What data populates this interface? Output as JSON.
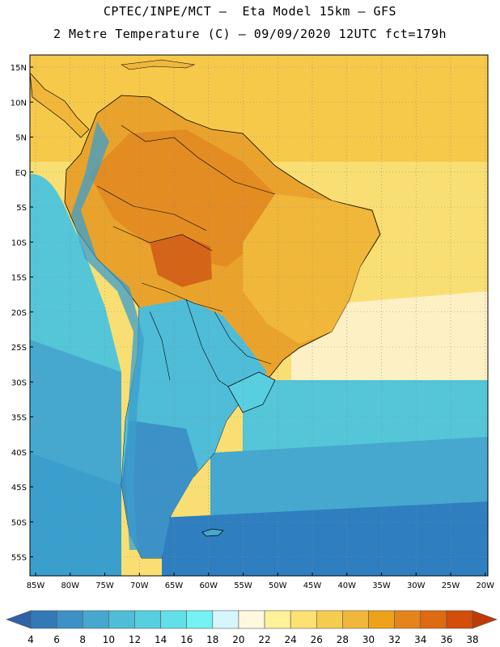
{
  "header": {
    "title_line1": "CPTEC/INPE/MCT –  Eta Model 15km – GFS",
    "title_line2": "2 Metre Temperature (C) – 09/09/2020 12UTC fct=179h"
  },
  "map": {
    "lat_labels": [
      "15N",
      "10N",
      "5N",
      "EQ",
      "5S",
      "10S",
      "15S",
      "20S",
      "25S",
      "30S",
      "35S",
      "40S",
      "45S",
      "50S",
      "55S"
    ],
    "lon_labels": [
      "85W",
      "80W",
      "75W",
      "70W",
      "65W",
      "60W",
      "55W",
      "50W",
      "45W",
      "40W",
      "35W",
      "30W",
      "25W",
      "20W"
    ],
    "ocean_colors": {
      "warm_tropical": "#f6c94b",
      "mid_tropical": "#f9df73",
      "pale_subtropic": "#fdf0c4",
      "cool_south": "#54c6d8",
      "cold_south": "#3a9fcd",
      "coldest": "#2f7fc0"
    }
  },
  "colorbar": {
    "ticks": [
      "4",
      "6",
      "8",
      "10",
      "12",
      "14",
      "16",
      "18",
      "20",
      "22",
      "24",
      "26",
      "28",
      "30",
      "32",
      "34",
      "36",
      "38"
    ],
    "colors": [
      "#2d62a8",
      "#3379b8",
      "#3c91c6",
      "#46a8cf",
      "#4fbcd8",
      "#58cfe0",
      "#62dfe8",
      "#74f2f4",
      "#d6f6fb",
      "#fff8e1",
      "#fff29a",
      "#fbe272",
      "#f6cc4e",
      "#f1b73a",
      "#eda21a",
      "#e5831c",
      "#de6a12",
      "#d24e0a",
      "#bf3a06"
    ]
  }
}
